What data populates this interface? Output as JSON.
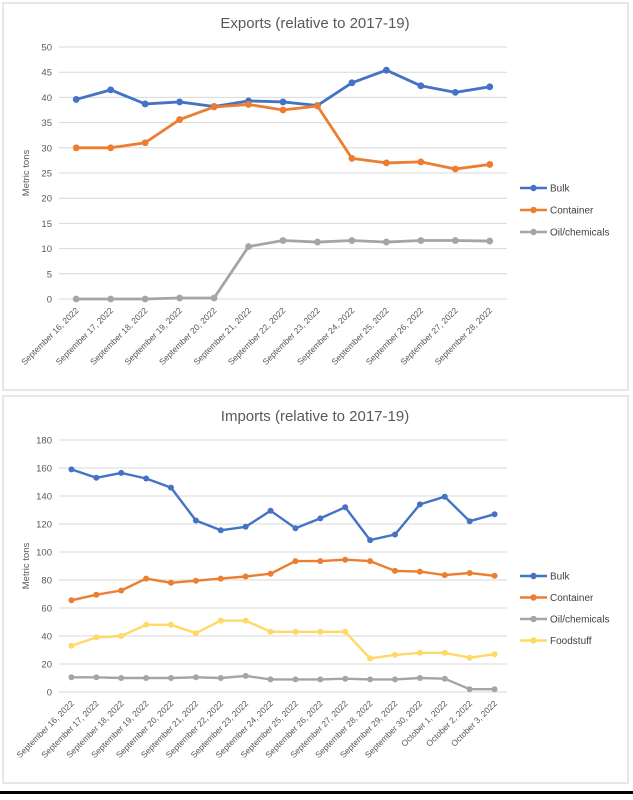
{
  "page": {
    "background": "#FFFFFF",
    "bottom_bar_color": "#000000",
    "text_color": "#595959",
    "grid_color": "#D9D9D9",
    "legend_text_color": "#404040"
  },
  "chart_data": [
    {
      "type": "line",
      "title": "Exports (relative to 2017-19)",
      "xlabel": "",
      "ylabel": "Metric tons",
      "ylim": [
        0,
        50
      ],
      "y_tick_step": 5,
      "grid": true,
      "legend_position": "right",
      "categories": [
        "September 16, 2022",
        "September 17, 2022",
        "September 18, 2022",
        "September 19, 2022",
        "September 20, 2022",
        "September 21, 2022",
        "September 22, 2022",
        "September 23, 2022",
        "September 24, 2022",
        "September 25, 2022",
        "September 26, 2022",
        "September 27, 2022",
        "September 28, 2022"
      ],
      "series": [
        {
          "name": "Bulk",
          "color": "#4472C4",
          "values": [
            39.6,
            41.5,
            38.7,
            39.1,
            38.2,
            39.3,
            39.1,
            38.4,
            42.9,
            45.4,
            42.3,
            41.0,
            42.1
          ]
        },
        {
          "name": "Container",
          "color": "#ED7D31",
          "values": [
            30.0,
            30.0,
            31.0,
            35.6,
            38.1,
            38.6,
            37.5,
            38.3,
            27.9,
            27.0,
            27.2,
            25.8,
            26.7
          ]
        },
        {
          "name": "Oil/chemicals",
          "color": "#A5A5A5",
          "values": [
            0,
            0,
            0,
            0.2,
            0.2,
            10.4,
            11.6,
            11.3,
            11.6,
            11.3,
            11.6,
            11.6,
            11.5
          ]
        }
      ]
    },
    {
      "type": "line",
      "title": "Imports (relative to 2017-19)",
      "xlabel": "",
      "ylabel": "Metric tons",
      "ylim": [
        0,
        180
      ],
      "y_tick_step": 20,
      "grid": true,
      "legend_position": "right",
      "categories": [
        "September 16, 2022",
        "September 17, 2022",
        "September 18, 2022",
        "September 19, 2022",
        "September 20, 2022",
        "September 21, 2022",
        "September 22, 2022",
        "September 23, 2022",
        "September 24, 2022",
        "September 25, 2022",
        "September 26, 2022",
        "September 27, 2022",
        "September 28, 2022",
        "September 29, 2022",
        "September 30, 2022",
        "October 1, 2022",
        "October 2, 2022",
        "October 3, 2022"
      ],
      "series": [
        {
          "name": "Bulk",
          "color": "#4472C4",
          "values": [
            159,
            153,
            156.5,
            152.5,
            146,
            122.5,
            115.5,
            118,
            129.5,
            117,
            124,
            132,
            108.5,
            112.5,
            134,
            139.5,
            122,
            127
          ]
        },
        {
          "name": "Container",
          "color": "#ED7D31",
          "values": [
            65.5,
            69.5,
            72.5,
            81,
            78,
            79.5,
            81,
            82.5,
            84.5,
            93.5,
            93.5,
            94.5,
            93.5,
            86.5,
            86,
            83.5,
            85,
            83
          ]
        },
        {
          "name": "Oil/chemicals",
          "color": "#A5A5A5",
          "values": [
            10.5,
            10.5,
            10,
            10,
            10,
            10.5,
            10,
            11.5,
            9,
            9,
            9,
            9.5,
            9,
            9,
            10,
            9.5,
            2,
            2
          ]
        },
        {
          "name": "Foodstuff",
          "color": "#FFD966",
          "values": [
            33,
            39,
            40,
            48,
            48,
            42,
            51,
            51,
            43,
            43,
            43,
            43,
            24,
            26.5,
            28,
            28,
            24.5,
            27
          ]
        }
      ]
    }
  ]
}
